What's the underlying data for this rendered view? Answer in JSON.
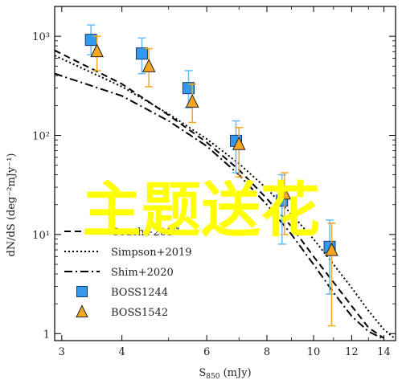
{
  "chart_data": {
    "type": "scatter",
    "xlabel": "S",
    "xlabel_sub": "850",
    "xlabel_unit": " (mJy)",
    "ylabel": "dN/dS (deg⁻²mJy⁻¹)",
    "xscale": "log",
    "yscale": "log",
    "xlim": [
      2.9,
      14.8
    ],
    "ylim": [
      0.85,
      2000
    ],
    "x_ticks": [
      {
        "value": 3,
        "label": "3"
      },
      {
        "value": 4,
        "label": "4"
      },
      {
        "value": 6,
        "label": "6"
      },
      {
        "value": 8,
        "label": "8"
      },
      {
        "value": 10,
        "label": "10"
      },
      {
        "value": 12,
        "label": "12"
      },
      {
        "value": 14,
        "label": "14"
      }
    ],
    "y_ticks": [
      {
        "value": 1,
        "label": "1"
      },
      {
        "value": 10,
        "label": "10¹"
      },
      {
        "value": 100,
        "label": "10²"
      },
      {
        "value": 1000,
        "label": "10³"
      }
    ],
    "lines": [
      {
        "name": "Geach+2017",
        "style": "dashed",
        "points": [
          [
            2.9,
            720
          ],
          [
            4,
            330
          ],
          [
            5,
            160
          ],
          [
            6,
            85
          ],
          [
            7,
            45
          ],
          [
            8,
            23
          ],
          [
            9,
            12
          ],
          [
            10,
            6
          ],
          [
            11,
            3.3
          ],
          [
            12,
            1.9
          ],
          [
            13,
            1.15
          ],
          [
            14,
            0.9
          ]
        ]
      },
      {
        "name": "Simpson+2019",
        "style": "dotted",
        "points": [
          [
            2.9,
            640
          ],
          [
            4,
            310
          ],
          [
            5,
            165
          ],
          [
            6,
            92
          ],
          [
            7,
            52
          ],
          [
            8,
            29
          ],
          [
            9,
            16
          ],
          [
            10,
            9
          ],
          [
            11,
            5
          ],
          [
            12,
            2.9
          ],
          [
            13,
            1.7
          ],
          [
            14,
            1.1
          ],
          [
            14.8,
            0.88
          ]
        ]
      },
      {
        "name": "Shim+2020",
        "style": "dashdot",
        "points": [
          [
            2.9,
            420
          ],
          [
            4,
            250
          ],
          [
            5,
            140
          ],
          [
            6,
            78
          ],
          [
            7,
            40
          ],
          [
            8,
            20
          ],
          [
            9,
            10
          ],
          [
            10,
            5
          ],
          [
            11,
            2.6
          ],
          [
            12,
            1.5
          ],
          [
            13,
            1.05
          ],
          [
            14,
            0.88
          ]
        ]
      }
    ],
    "series": [
      {
        "name": "BOSS1244",
        "marker": "square",
        "color": "#3399ee",
        "error_color": "#66bbf7",
        "points": [
          {
            "x": 3.45,
            "y": 920,
            "ylo": 650,
            "yhi": 1300
          },
          {
            "x": 4.4,
            "y": 670,
            "ylo": 420,
            "yhi": 960
          },
          {
            "x": 5.5,
            "y": 300,
            "ylo": 190,
            "yhi": 450
          },
          {
            "x": 6.9,
            "y": 88,
            "ylo": 42,
            "yhi": 140
          },
          {
            "x": 8.6,
            "y": 22,
            "ylo": 8,
            "yhi": 40
          },
          {
            "x": 10.8,
            "y": 7.5,
            "ylo": 2.5,
            "yhi": 14
          }
        ]
      },
      {
        "name": "BOSS1542",
        "marker": "triangle",
        "color": "#f5a623",
        "error_color": "#f5a623",
        "points": [
          {
            "x": 3.55,
            "y": 710,
            "ylo": 450,
            "yhi": 1000
          },
          {
            "x": 4.55,
            "y": 500,
            "ylo": 310,
            "yhi": 750
          },
          {
            "x": 5.6,
            "y": 220,
            "ylo": 135,
            "yhi": 330
          },
          {
            "x": 7.0,
            "y": 82,
            "ylo": 38,
            "yhi": 120
          },
          {
            "x": 8.7,
            "y": 26,
            "ylo": 10,
            "yhi": 42
          },
          {
            "x": 10.9,
            "y": 7,
            "ylo": 1.2,
            "yhi": 13
          }
        ]
      }
    ],
    "legend": {
      "placement": "bottom-left",
      "entries": [
        {
          "label": "Geach+2017",
          "kind": "line",
          "style": "dashed"
        },
        {
          "label": "Simpson+2019",
          "kind": "line",
          "style": "dotted"
        },
        {
          "label": "Shim+2020",
          "kind": "line",
          "style": "dashdot"
        },
        {
          "label": "BOSS1244",
          "kind": "marker",
          "marker": "square"
        },
        {
          "label": "BOSS1542",
          "kind": "marker",
          "marker": "triangle"
        }
      ]
    },
    "grid": false
  },
  "overlay_text": "主题送花"
}
